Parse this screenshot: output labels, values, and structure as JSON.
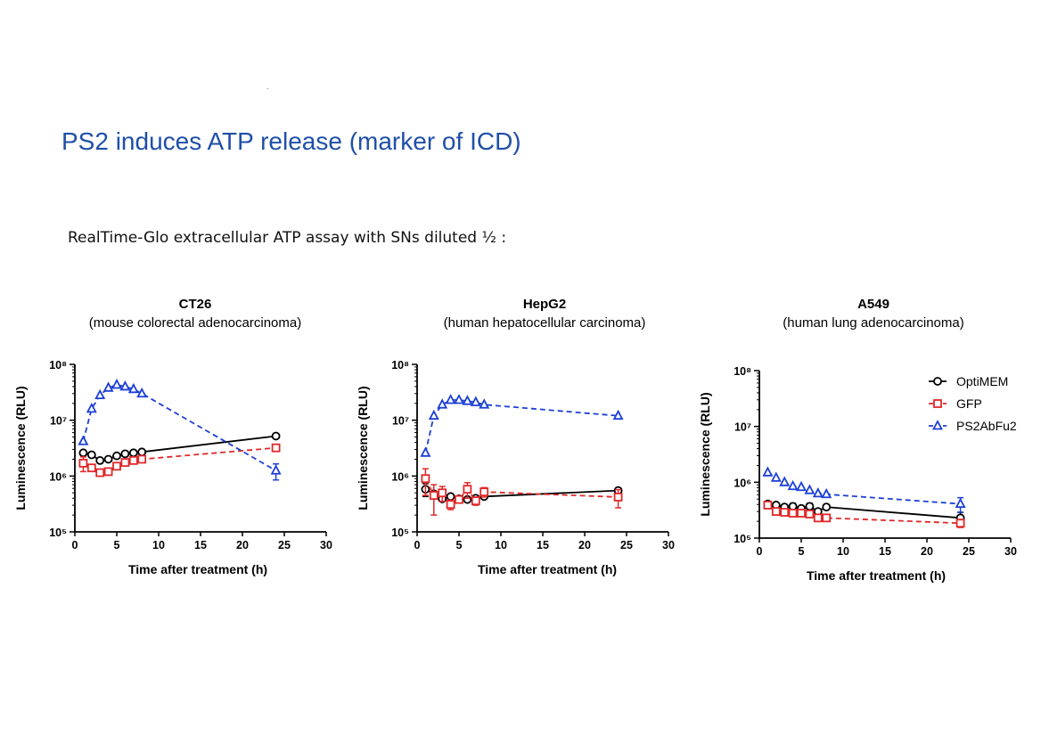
{
  "slide": {
    "title": "PS2 induces ATP release (marker of ICD)",
    "subtitle": "RealTime-Glo extracellular ATP assay with SNs diluted ½ :"
  },
  "colors": {
    "title": "#1f4fa8",
    "OptiMEM": "#000000",
    "GFP": "#e0282a",
    "PS2AbFu2": "#1c3fd6"
  },
  "chart_data": [
    {
      "type": "line",
      "title": "CT26",
      "subtitle": "(mouse colorectal adenocarcinoma)",
      "xlabel": "Time after treatment (h)",
      "ylabel": "Luminescence (RLU)",
      "xlim": [
        0,
        30
      ],
      "xticks": [
        0,
        5,
        10,
        15,
        20,
        25,
        30
      ],
      "ylim": [
        100000,
        100000000
      ],
      "yscale": "log",
      "yticks": [
        "10⁵",
        "10⁶",
        "10⁷",
        "10⁸"
      ],
      "series": [
        {
          "name": "OptiMEM",
          "marker": "circle",
          "dash": "solid",
          "x": [
            1,
            2,
            3,
            4,
            5,
            6,
            7,
            8,
            24
          ],
          "y": [
            2600000,
            2400000,
            1900000,
            2000000,
            2300000,
            2500000,
            2600000,
            2700000,
            5200000
          ],
          "err": [
            0,
            0,
            0,
            0,
            0,
            0,
            0,
            0,
            0
          ]
        },
        {
          "name": "GFP",
          "marker": "square",
          "dash": "dashed",
          "x": [
            1,
            2,
            3,
            4,
            5,
            6,
            7,
            8,
            24
          ],
          "y": [
            1700000,
            1400000,
            1150000,
            1200000,
            1500000,
            1750000,
            1900000,
            2000000,
            3200000
          ],
          "err": [
            500000,
            0,
            0,
            0,
            0,
            0,
            0,
            0,
            0
          ]
        },
        {
          "name": "PS2AbFu2",
          "marker": "triangle",
          "dash": "dashed",
          "x": [
            1,
            2,
            3,
            4,
            5,
            6,
            7,
            8,
            24
          ],
          "y": [
            4200000,
            16000000,
            28000000,
            38000000,
            43000000,
            40000000,
            36000000,
            30000000,
            1250000
          ],
          "err": [
            0,
            0,
            0,
            0,
            0,
            0,
            0,
            0,
            400000
          ]
        }
      ]
    },
    {
      "type": "line",
      "title": "HepG2",
      "subtitle": "(human hepatocellular carcinoma)",
      "xlabel": "Time after treatment (h)",
      "ylabel": "Luminescence (RLU)",
      "xlim": [
        0,
        30
      ],
      "xticks": [
        0,
        5,
        10,
        15,
        20,
        25,
        30
      ],
      "ylim": [
        100000,
        100000000
      ],
      "yscale": "log",
      "yticks": [
        "10⁵",
        "10⁶",
        "10⁷",
        "10⁸"
      ],
      "series": [
        {
          "name": "OptiMEM",
          "marker": "circle",
          "dash": "solid",
          "x": [
            1,
            2,
            3,
            4,
            5,
            6,
            7,
            8,
            24
          ],
          "y": [
            580000,
            480000,
            390000,
            430000,
            390000,
            380000,
            400000,
            430000,
            550000
          ],
          "err": [
            150000,
            0,
            0,
            0,
            0,
            0,
            0,
            0,
            60000
          ]
        },
        {
          "name": "GFP",
          "marker": "square",
          "dash": "dashed",
          "x": [
            1,
            2,
            3,
            4,
            5,
            6,
            7,
            8,
            24
          ],
          "y": [
            900000,
            450000,
            500000,
            310000,
            380000,
            580000,
            360000,
            520000,
            420000
          ],
          "err": [
            450000,
            250000,
            150000,
            60000,
            40000,
            180000,
            60000,
            100000,
            150000
          ]
        },
        {
          "name": "PS2AbFu2",
          "marker": "triangle",
          "dash": "dashed",
          "x": [
            1,
            2,
            3,
            4,
            5,
            6,
            7,
            8,
            24
          ],
          "y": [
            2600000,
            12000000,
            19000000,
            23000000,
            23000000,
            22000000,
            21000000,
            19000000,
            12000000
          ],
          "err": [
            0,
            0,
            0,
            0,
            0,
            0,
            0,
            0,
            0
          ]
        }
      ]
    },
    {
      "type": "line",
      "title": "A549",
      "subtitle": "(human lung adenocarcinoma)",
      "xlabel": "Time after treatment (h)",
      "ylabel": "Luminescence (RLU)",
      "xlim": [
        0,
        30
      ],
      "xticks": [
        0,
        5,
        10,
        15,
        20,
        25,
        30
      ],
      "ylim": [
        100000,
        100000000
      ],
      "yscale": "log",
      "yticks": [
        "10⁵",
        "10⁶",
        "10⁷",
        "10⁸"
      ],
      "legend": {
        "position": "top-right",
        "entries": [
          "OptiMEM",
          "GFP",
          "PS2AbFu2"
        ]
      },
      "series": [
        {
          "name": "OptiMEM",
          "marker": "circle",
          "dash": "solid",
          "x": [
            1,
            2,
            3,
            4,
            5,
            6,
            7,
            8,
            24
          ],
          "y": [
            410000,
            390000,
            360000,
            370000,
            340000,
            370000,
            300000,
            360000,
            230000
          ],
          "err": [
            0,
            0,
            0,
            50000,
            0,
            50000,
            0,
            0,
            60000
          ]
        },
        {
          "name": "GFP",
          "marker": "square",
          "dash": "dashed",
          "x": [
            1,
            2,
            3,
            4,
            5,
            6,
            7,
            8,
            24
          ],
          "y": [
            390000,
            300000,
            290000,
            280000,
            280000,
            270000,
            230000,
            230000,
            185000
          ],
          "err": [
            0,
            0,
            0,
            0,
            0,
            0,
            0,
            0,
            30000
          ]
        },
        {
          "name": "PS2AbFu2",
          "marker": "triangle",
          "dash": "dashed",
          "x": [
            1,
            2,
            3,
            4,
            5,
            6,
            7,
            8,
            24
          ],
          "y": [
            1500000,
            1200000,
            1000000,
            850000,
            820000,
            720000,
            630000,
            610000,
            410000
          ],
          "err": [
            0,
            0,
            0,
            0,
            0,
            0,
            0,
            0,
            120000
          ]
        }
      ]
    }
  ]
}
